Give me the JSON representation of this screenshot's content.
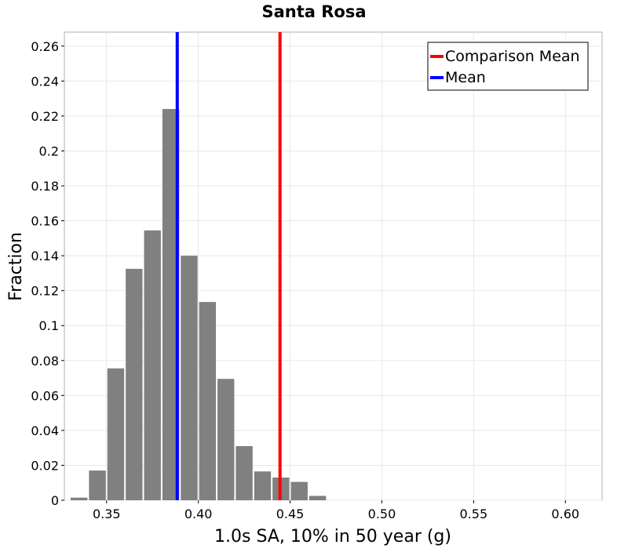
{
  "chart_data": {
    "type": "bar",
    "title": "Santa Rosa",
    "xlabel": "1.0s SA, 10% in 50 year (g)",
    "ylabel": "Fraction",
    "xlim": [
      0.327,
      0.62
    ],
    "ylim": [
      0,
      0.268
    ],
    "x_ticks": [
      0.35,
      0.4,
      0.45,
      0.5,
      0.55,
      0.6
    ],
    "x_tick_labels": [
      "0.35",
      "0.40",
      "0.45",
      "0.50",
      "0.55",
      "0.60"
    ],
    "y_ticks": [
      0,
      0.02,
      0.04,
      0.06,
      0.08,
      0.1,
      0.12,
      0.14,
      0.16,
      0.18,
      0.2,
      0.22,
      0.24,
      0.26
    ],
    "y_tick_labels": [
      "0",
      "0.02",
      "0.04",
      "0.06",
      "0.08",
      "0.1",
      "0.12",
      "0.14",
      "0.16",
      "0.18",
      "0.2",
      "0.22",
      "0.24",
      "0.26"
    ],
    "grid": true,
    "bin_width": 0.01,
    "bins": [
      {
        "x": 0.335,
        "value": 0.0015
      },
      {
        "x": 0.345,
        "value": 0.017
      },
      {
        "x": 0.355,
        "value": 0.0755
      },
      {
        "x": 0.365,
        "value": 0.1325
      },
      {
        "x": 0.375,
        "value": 0.1545
      },
      {
        "x": 0.385,
        "value": 0.224
      },
      {
        "x": 0.395,
        "value": 0.14
      },
      {
        "x": 0.405,
        "value": 0.1135
      },
      {
        "x": 0.415,
        "value": 0.0695
      },
      {
        "x": 0.425,
        "value": 0.031
      },
      {
        "x": 0.435,
        "value": 0.0165
      },
      {
        "x": 0.445,
        "value": 0.013
      },
      {
        "x": 0.455,
        "value": 0.0105
      },
      {
        "x": 0.465,
        "value": 0.0025
      }
    ],
    "bar_color": "#808080",
    "vertical_lines": [
      {
        "name": "Comparison Mean",
        "x": 0.4445,
        "color": "#ff0000"
      },
      {
        "name": "Mean",
        "x": 0.3885,
        "color": "#0000ff"
      }
    ],
    "legend": {
      "position": "top-right",
      "entries": [
        {
          "label": "Comparison Mean",
          "color": "#ff0000"
        },
        {
          "label": "Mean",
          "color": "#0000ff"
        }
      ]
    }
  }
}
